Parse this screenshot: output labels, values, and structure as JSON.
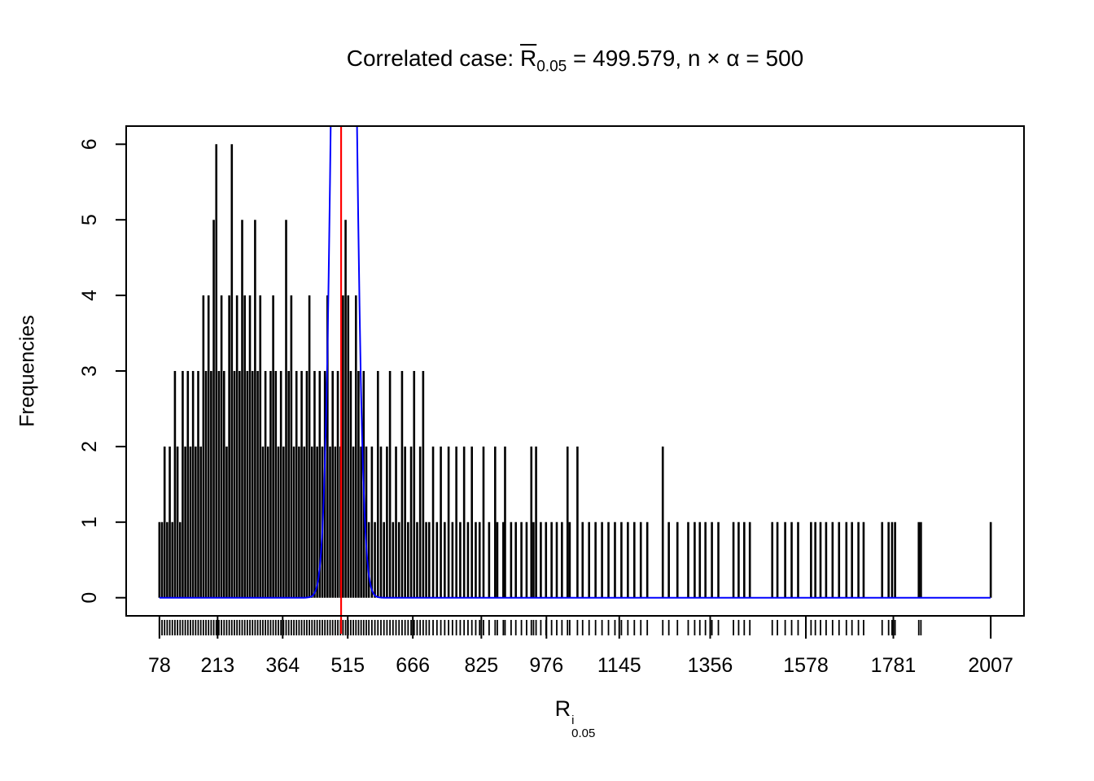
{
  "chart_data": {
    "type": "bar",
    "title_text": "Correlated case: R̄0.05 = 499.579, n × α = 500",
    "title_parts": {
      "prefix": "Correlated case: ",
      "rbar": "R",
      "rsub": "0.05",
      "rest": " = 499.579, n × α = 500"
    },
    "xlabel_parts": {
      "base": "R",
      "sup": "i",
      "sub": "0.05"
    },
    "ylabel": "Frequencies",
    "xlim": [
      78,
      2007
    ],
    "ylim": [
      0,
      6
    ],
    "x_ticks": [
      78,
      213,
      364,
      515,
      666,
      825,
      976,
      1145,
      1356,
      1578,
      1781,
      2007
    ],
    "y_ticks": [
      0,
      1,
      2,
      3,
      4,
      5,
      6
    ],
    "grid": false,
    "legend": "none",
    "colors": {
      "spikes": "#000000",
      "curve": "#0000ff",
      "vline": "#ff0000",
      "frame": "#000000"
    },
    "vline_x": 499.579,
    "curve": {
      "shape": "gaussian",
      "center": 506,
      "scale": 20,
      "peak": 20
    },
    "rug_from_spikes": true,
    "spikes": [
      [
        78,
        1
      ],
      [
        84,
        1
      ],
      [
        90,
        2
      ],
      [
        96,
        1
      ],
      [
        102,
        2
      ],
      [
        108,
        1
      ],
      [
        114,
        3
      ],
      [
        120,
        2
      ],
      [
        126,
        1
      ],
      [
        132,
        3
      ],
      [
        138,
        2
      ],
      [
        144,
        3
      ],
      [
        150,
        2
      ],
      [
        156,
        3
      ],
      [
        162,
        2
      ],
      [
        168,
        3
      ],
      [
        174,
        2
      ],
      [
        180,
        4
      ],
      [
        186,
        3
      ],
      [
        192,
        4
      ],
      [
        198,
        3
      ],
      [
        204,
        5
      ],
      [
        210,
        6
      ],
      [
        216,
        3
      ],
      [
        222,
        4
      ],
      [
        228,
        3
      ],
      [
        234,
        2
      ],
      [
        240,
        4
      ],
      [
        246,
        6
      ],
      [
        252,
        3
      ],
      [
        258,
        4
      ],
      [
        264,
        3
      ],
      [
        270,
        5
      ],
      [
        276,
        4
      ],
      [
        282,
        3
      ],
      [
        288,
        4
      ],
      [
        294,
        3
      ],
      [
        300,
        5
      ],
      [
        306,
        3
      ],
      [
        312,
        4
      ],
      [
        318,
        2
      ],
      [
        324,
        3
      ],
      [
        330,
        2
      ],
      [
        336,
        3
      ],
      [
        342,
        4
      ],
      [
        348,
        3
      ],
      [
        354,
        2
      ],
      [
        360,
        3
      ],
      [
        366,
        2
      ],
      [
        372,
        5
      ],
      [
        378,
        3
      ],
      [
        384,
        4
      ],
      [
        390,
        2
      ],
      [
        396,
        3
      ],
      [
        402,
        2
      ],
      [
        408,
        3
      ],
      [
        414,
        2
      ],
      [
        420,
        3
      ],
      [
        426,
        4
      ],
      [
        432,
        2
      ],
      [
        438,
        3
      ],
      [
        444,
        2
      ],
      [
        450,
        3
      ],
      [
        456,
        2
      ],
      [
        462,
        3
      ],
      [
        468,
        4
      ],
      [
        474,
        2
      ],
      [
        480,
        3
      ],
      [
        486,
        2
      ],
      [
        492,
        3
      ],
      [
        498,
        2
      ],
      [
        504,
        4
      ],
      [
        510,
        5
      ],
      [
        516,
        4
      ],
      [
        522,
        3
      ],
      [
        528,
        2
      ],
      [
        534,
        4
      ],
      [
        540,
        3
      ],
      [
        546,
        2
      ],
      [
        552,
        3
      ],
      [
        558,
        2
      ],
      [
        564,
        1
      ],
      [
        571,
        2
      ],
      [
        578,
        1
      ],
      [
        585,
        3
      ],
      [
        592,
        2
      ],
      [
        599,
        1
      ],
      [
        606,
        2
      ],
      [
        613,
        3
      ],
      [
        620,
        1
      ],
      [
        627,
        2
      ],
      [
        634,
        1
      ],
      [
        641,
        3
      ],
      [
        648,
        2
      ],
      [
        655,
        1
      ],
      [
        662,
        2
      ],
      [
        669,
        3
      ],
      [
        676,
        1
      ],
      [
        683,
        2
      ],
      [
        690,
        3
      ],
      [
        697,
        1
      ],
      [
        704,
        1
      ],
      [
        713,
        2
      ],
      [
        722,
        1
      ],
      [
        731,
        2
      ],
      [
        740,
        1
      ],
      [
        749,
        2
      ],
      [
        758,
        1
      ],
      [
        767,
        2
      ],
      [
        776,
        1
      ],
      [
        785,
        2
      ],
      [
        794,
        1
      ],
      [
        803,
        2
      ],
      [
        812,
        1
      ],
      [
        821,
        1
      ],
      [
        830,
        2
      ],
      [
        843,
        1
      ],
      [
        857,
        2
      ],
      [
        862,
        1
      ],
      [
        876,
        1
      ],
      [
        880,
        2
      ],
      [
        894,
        1
      ],
      [
        905,
        1
      ],
      [
        918,
        1
      ],
      [
        930,
        1
      ],
      [
        941,
        2
      ],
      [
        946,
        1
      ],
      [
        952,
        2
      ],
      [
        963,
        1
      ],
      [
        975,
        1
      ],
      [
        988,
        1
      ],
      [
        1000,
        1
      ],
      [
        1012,
        1
      ],
      [
        1025,
        2
      ],
      [
        1030,
        1
      ],
      [
        1048,
        2
      ],
      [
        1060,
        1
      ],
      [
        1075,
        1
      ],
      [
        1090,
        1
      ],
      [
        1105,
        1
      ],
      [
        1120,
        1
      ],
      [
        1135,
        1
      ],
      [
        1150,
        1
      ],
      [
        1165,
        1
      ],
      [
        1180,
        1
      ],
      [
        1195,
        1
      ],
      [
        1210,
        1
      ],
      [
        1246,
        2
      ],
      [
        1260,
        1
      ],
      [
        1280,
        1
      ],
      [
        1305,
        1
      ],
      [
        1320,
        1
      ],
      [
        1332,
        1
      ],
      [
        1345,
        1
      ],
      [
        1360,
        1
      ],
      [
        1375,
        1
      ],
      [
        1410,
        1
      ],
      [
        1422,
        1
      ],
      [
        1435,
        1
      ],
      [
        1448,
        1
      ],
      [
        1500,
        1
      ],
      [
        1512,
        1
      ],
      [
        1530,
        1
      ],
      [
        1545,
        1
      ],
      [
        1560,
        1
      ],
      [
        1590,
        1
      ],
      [
        1600,
        1
      ],
      [
        1612,
        1
      ],
      [
        1625,
        1
      ],
      [
        1640,
        1
      ],
      [
        1655,
        1
      ],
      [
        1672,
        1
      ],
      [
        1685,
        1
      ],
      [
        1700,
        1
      ],
      [
        1712,
        1
      ],
      [
        1755,
        1
      ],
      [
        1770,
        1
      ],
      [
        1778,
        1
      ],
      [
        1785,
        1
      ],
      [
        1840,
        1
      ],
      [
        1845,
        1
      ],
      [
        2007,
        1
      ]
    ]
  }
}
